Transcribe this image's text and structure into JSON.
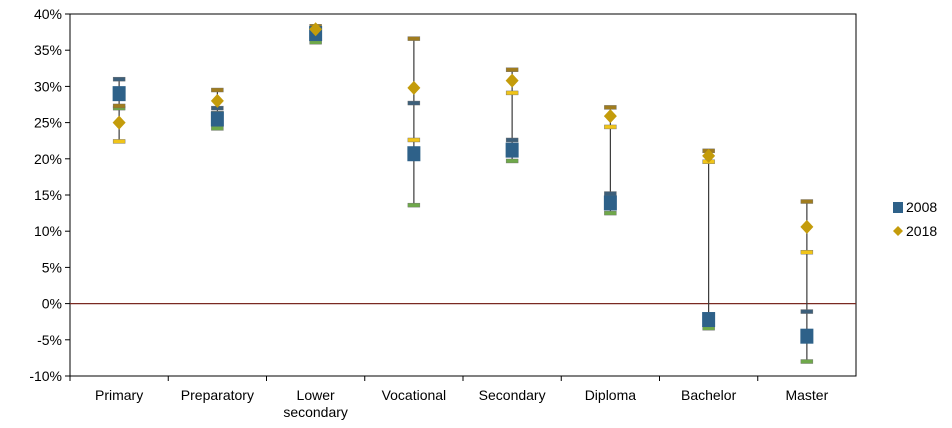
{
  "chart_data": {
    "type": "scatter",
    "title": "",
    "xlabel": "",
    "ylabel": "",
    "y_unit": "percent",
    "ylim": [
      -10,
      40
    ],
    "yticks": [
      40,
      35,
      30,
      25,
      20,
      15,
      10,
      5,
      0,
      -5,
      -10
    ],
    "ytick_labels": [
      "40%",
      "35%",
      "30%",
      "25%",
      "20%",
      "15%",
      "10%",
      "5%",
      "0%",
      "-5%",
      "-10%"
    ],
    "categories": [
      "Primary",
      "Preparatory",
      "Lower secondary",
      "Vocational",
      "Secondary",
      "Diploma",
      "Bachelor",
      "Master"
    ],
    "category_labels": [
      [
        "Primary"
      ],
      [
        "Preparatory"
      ],
      [
        "Lower",
        "secondary"
      ],
      [
        "Vocational"
      ],
      [
        "Secondary"
      ],
      [
        "Diploma"
      ],
      [
        "Bachelor"
      ],
      [
        "Master"
      ]
    ],
    "series": [
      {
        "name": "2008",
        "color": "#2e6189",
        "marker": "square",
        "values": [
          29,
          25.5,
          37.3,
          20.7,
          21.2,
          13.9,
          -2.2,
          -4.5
        ],
        "upper": [
          31,
          27,
          37.6,
          27.7,
          22.6,
          15.2,
          -2.0,
          -1.1
        ],
        "lower": [
          27,
          24.2,
          36.1,
          13.6,
          19.7,
          12.5,
          -3.4,
          -8
        ]
      },
      {
        "name": "2018",
        "color": "#c49c0b",
        "marker": "diamond",
        "values": [
          25,
          28,
          37.9,
          29.8,
          30.8,
          25.9,
          20.4,
          10.6
        ],
        "upper": [
          27.3,
          29.5,
          38.3,
          36.6,
          32.3,
          27.1,
          21.1,
          14.1
        ],
        "lower": [
          22.4,
          26.3,
          36.9,
          22.6,
          29.1,
          24.4,
          19.6,
          7.1
        ]
      }
    ],
    "reference_line": {
      "y": 0,
      "color": "#7a2a22"
    },
    "legend": {
      "placement": "right",
      "entries": [
        "2008",
        "2018"
      ]
    },
    "colors": {
      "range_line": "#3a3a3a",
      "cap_top_2008": "#3d5f7a",
      "cap_bottom_2008": "#6fa84a",
      "cap_top_2018": "#a07c1e",
      "cap_bottom_2018": "#f0c419"
    },
    "grid": false
  }
}
